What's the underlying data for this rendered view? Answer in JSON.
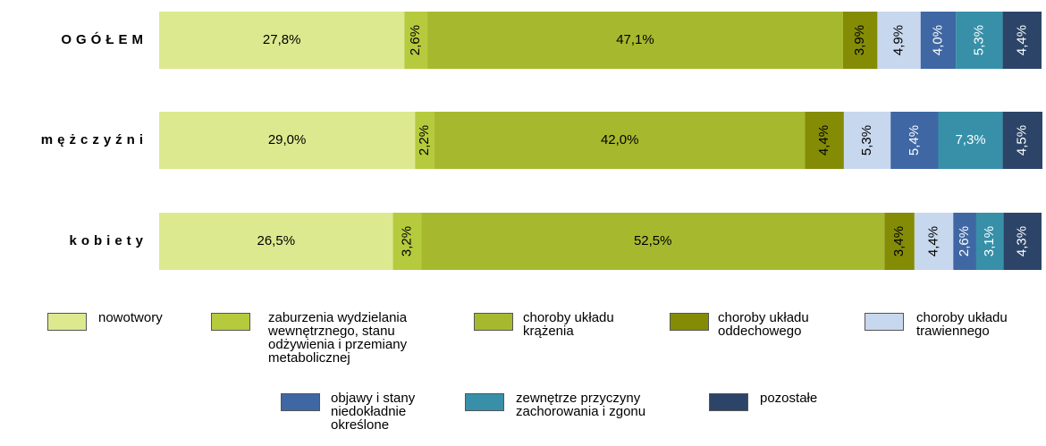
{
  "chart_data": {
    "type": "bar",
    "orientation": "horizontal",
    "stacked": true,
    "categories": [
      "OGÓŁEM",
      "mężczyźni",
      "kobiety"
    ],
    "xlim": [
      0,
      100
    ],
    "series": [
      {
        "name": "nowotwory",
        "color": "#dde98f",
        "values": [
          27.8,
          29.0,
          26.5
        ],
        "value_labels": [
          "27,8%",
          "29,0%",
          "26,5%"
        ]
      },
      {
        "name": "zaburzenia wydzielania wewnętrznego, stanu odżywienia i przemiany metabolicznej",
        "color": "#b6ca3e",
        "values": [
          2.6,
          2.2,
          3.2
        ],
        "value_labels": [
          "2,6%",
          "2,2%",
          "3,2%"
        ]
      },
      {
        "name": "choroby układu krążenia",
        "color": "#a6b92e",
        "values": [
          47.1,
          42.0,
          52.5
        ],
        "value_labels": [
          "47,1%",
          "42,0%",
          "52,5%"
        ]
      },
      {
        "name": "choroby układu oddechowego",
        "color": "#848c06",
        "values": [
          3.9,
          4.4,
          3.4
        ],
        "value_labels": [
          "3,9%",
          "4,4%",
          "3,4%"
        ]
      },
      {
        "name": "choroby układu trawiennego",
        "color": "#c7d7ee",
        "values": [
          4.9,
          5.3,
          4.4
        ],
        "value_labels": [
          "4,9%",
          "5,3%",
          "4,4%"
        ]
      },
      {
        "name": "objawy i stany niedokładnie określone",
        "color": "#3f67a4",
        "values": [
          4.0,
          5.4,
          2.6
        ],
        "value_labels": [
          "4,0%",
          "5,4%",
          "2,6%"
        ]
      },
      {
        "name": "zewnętrze przyczyny zachorowania i zgonu",
        "color": "#3790a8",
        "values": [
          5.3,
          7.3,
          3.1
        ],
        "value_labels": [
          "5,3%",
          "7,3%",
          "3,1%"
        ]
      },
      {
        "name": "pozostałe",
        "color": "#2c4468",
        "values": [
          4.4,
          4.5,
          4.3
        ],
        "value_labels": [
          "4,4%",
          "4,5%",
          "4,3%"
        ]
      }
    ]
  }
}
